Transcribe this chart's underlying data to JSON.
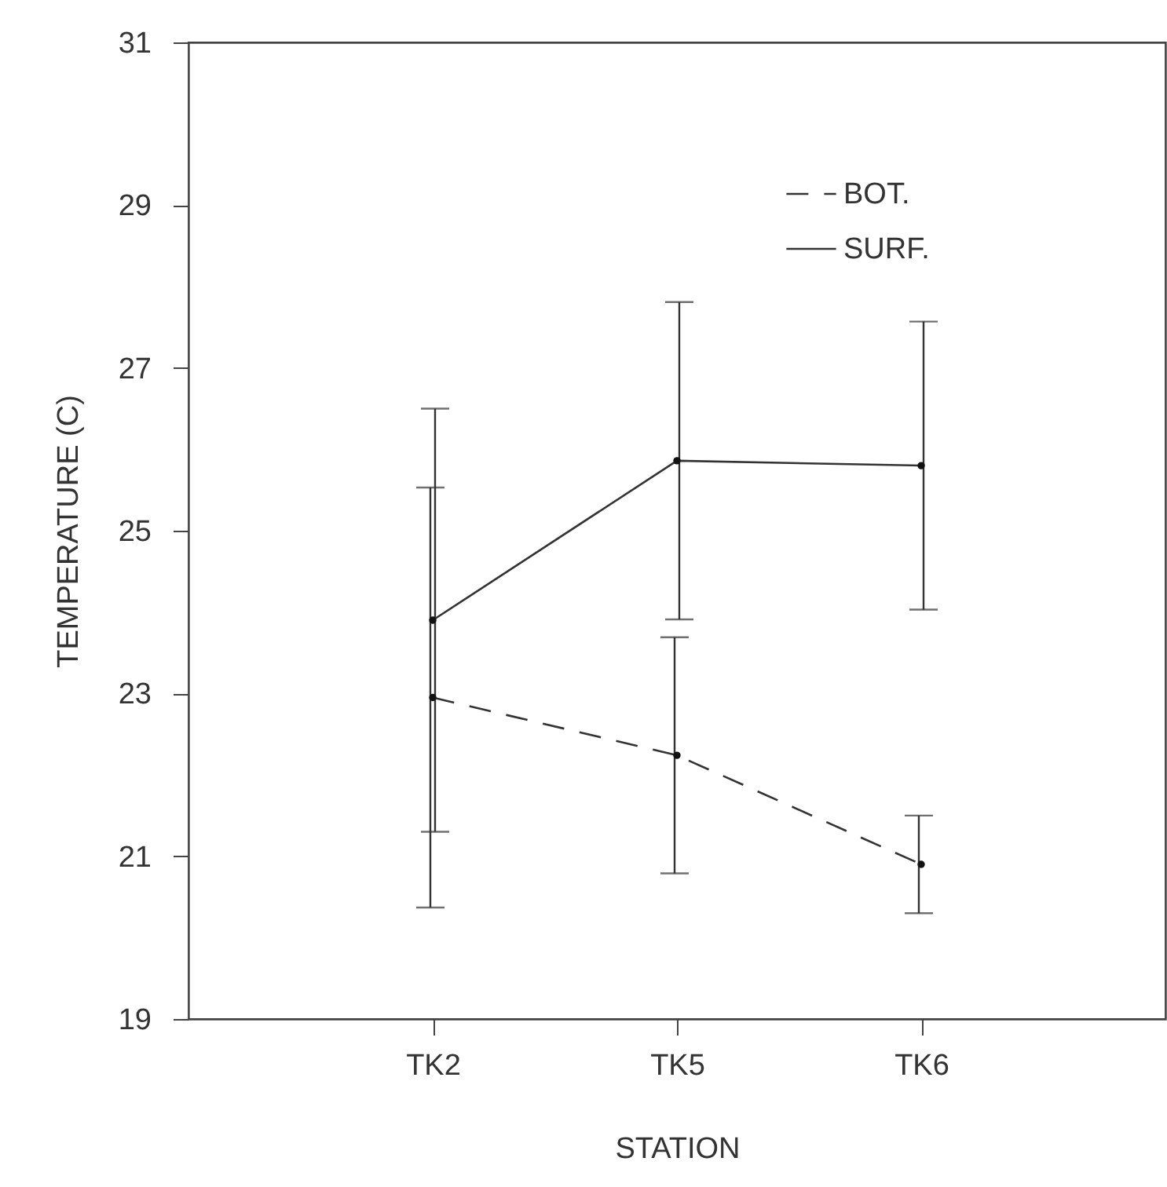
{
  "chart_data": {
    "type": "line",
    "xlabel": "STATION",
    "ylabel": "TEMPERATURE (C)",
    "categories": [
      "TK2",
      "TK5",
      "TK6"
    ],
    "ylim": [
      19,
      31
    ],
    "yticks": [
      19,
      21,
      23,
      25,
      27,
      29,
      31
    ],
    "grid": false,
    "legend": "top right",
    "marker": "circle",
    "series": [
      {
        "name": "BOT.",
        "color": "#333333",
        "line_style": "dashed",
        "values": [
          22.95,
          22.24,
          20.9
        ],
        "errors": [
          2.58,
          1.45,
          0.6
        ]
      },
      {
        "name": "SURF.",
        "color": "#333333",
        "line_style": "solid",
        "values": [
          23.9,
          25.86,
          25.8
        ],
        "errors": [
          2.6,
          1.95,
          1.77
        ]
      }
    ]
  }
}
